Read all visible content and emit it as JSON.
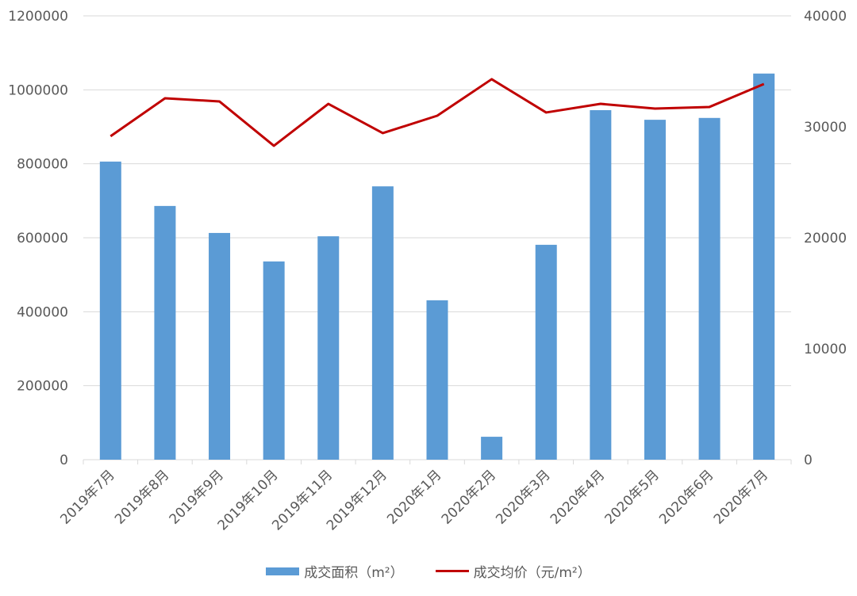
{
  "chart_data": {
    "type": "bar+line",
    "categories": [
      "2019年7月",
      "2019年8月",
      "2019年9月",
      "2019年10月",
      "2019年11月",
      "2019年12月",
      "2020年1月",
      "2020年2月",
      "2020年3月",
      "2020年4月",
      "2020年5月",
      "2020年6月",
      "2020年7月"
    ],
    "series": [
      {
        "name": "成交面积（m²）",
        "type": "bar",
        "axis": "left",
        "color": "#5b9bd5",
        "values": [
          806000,
          686000,
          613000,
          536000,
          604000,
          739000,
          431000,
          62000,
          581000,
          945000,
          919000,
          924000,
          1044000
        ]
      },
      {
        "name": "成交均价（元/m²）",
        "type": "line",
        "axis": "right",
        "color": "#c00000",
        "values": [
          29150,
          32570,
          32290,
          28290,
          32070,
          29430,
          31000,
          34290,
          31290,
          32070,
          31640,
          31790,
          33860
        ]
      }
    ],
    "y_left": {
      "min": 0,
      "max": 1200000,
      "ticks": [
        "0",
        "200000",
        "400000",
        "600000",
        "800000",
        "1000000",
        "1200000"
      ]
    },
    "y_right": {
      "min": 0,
      "max": 40000,
      "ticks": [
        "0",
        "10000",
        "20000",
        "30000",
        "40000"
      ]
    },
    "grid": true,
    "legend": "bottom"
  }
}
